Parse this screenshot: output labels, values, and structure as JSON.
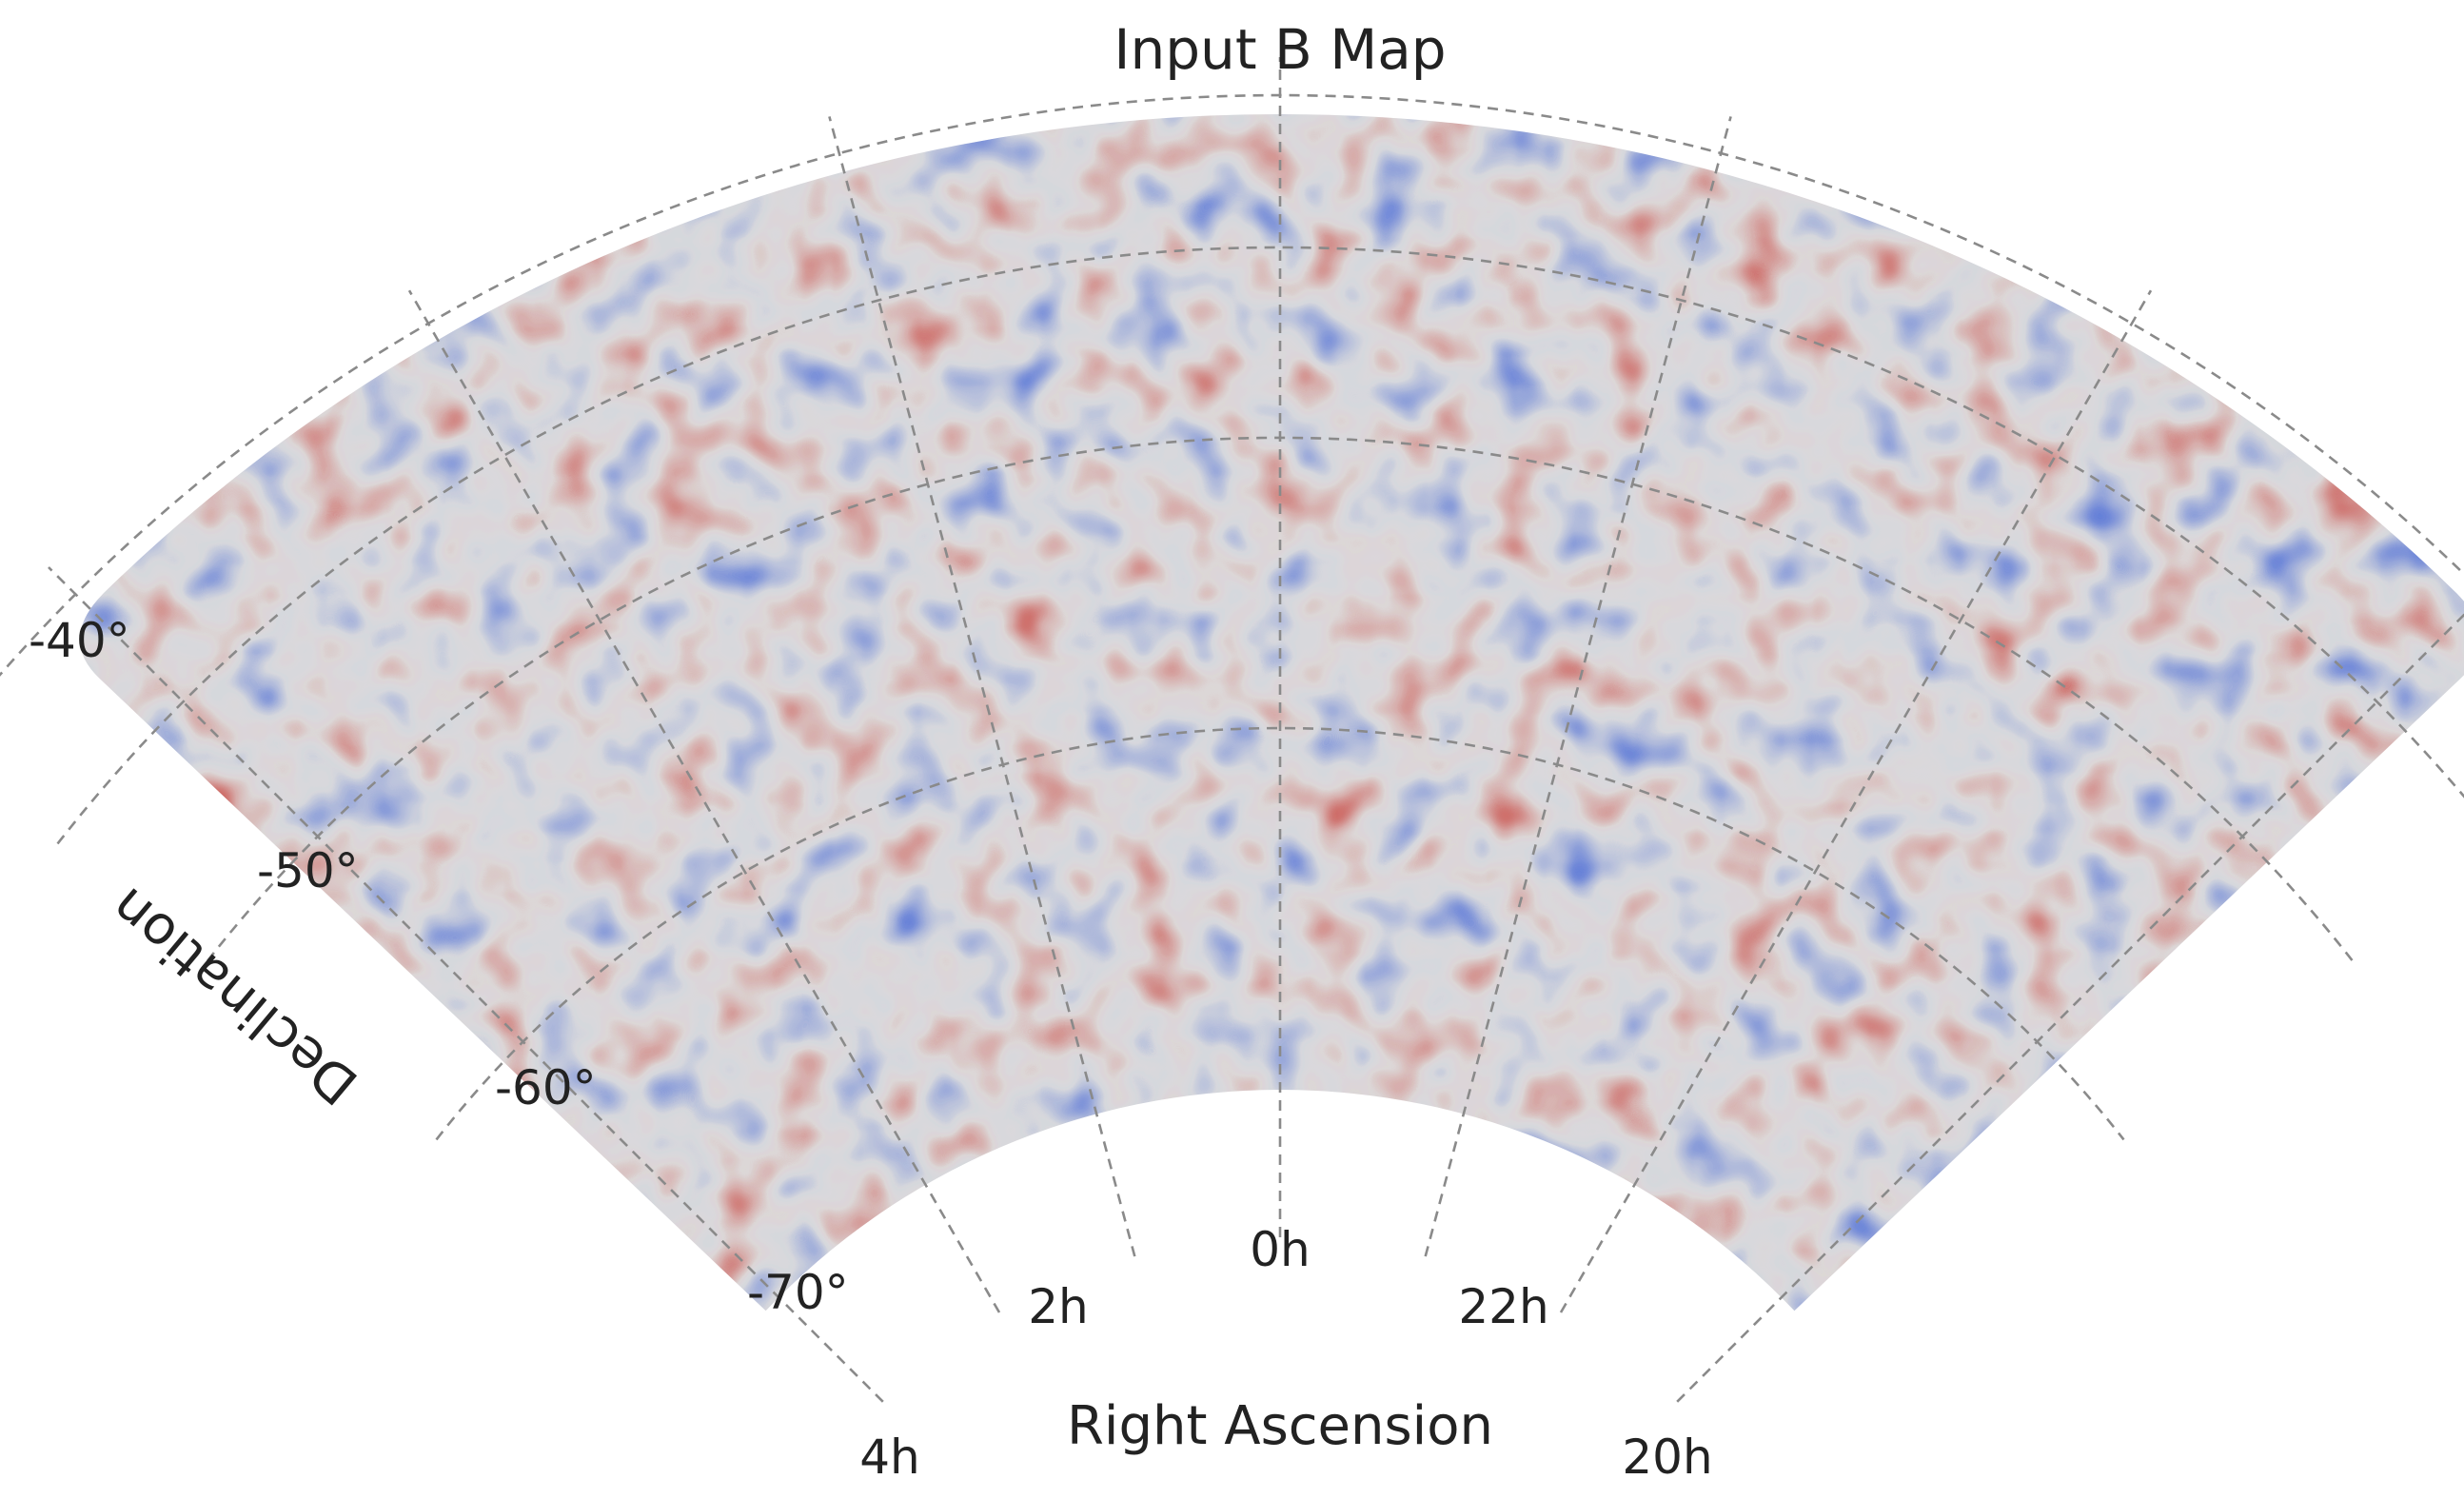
{
  "title": "Input B Map",
  "axes": {
    "x_label": "Right Ascension",
    "y_label": "Declination"
  },
  "ra_ticks": [
    "0h",
    "2h",
    "4h",
    "22h",
    "20h"
  ],
  "dec_ticks": [
    "-40°",
    "-50°",
    "-60°",
    "-70°"
  ],
  "colormap": {
    "name": "coolwarm",
    "low": "#3b5fd6",
    "mid": "#dddddd",
    "high": "#c8403a"
  },
  "map_content": "random-field-noise"
}
